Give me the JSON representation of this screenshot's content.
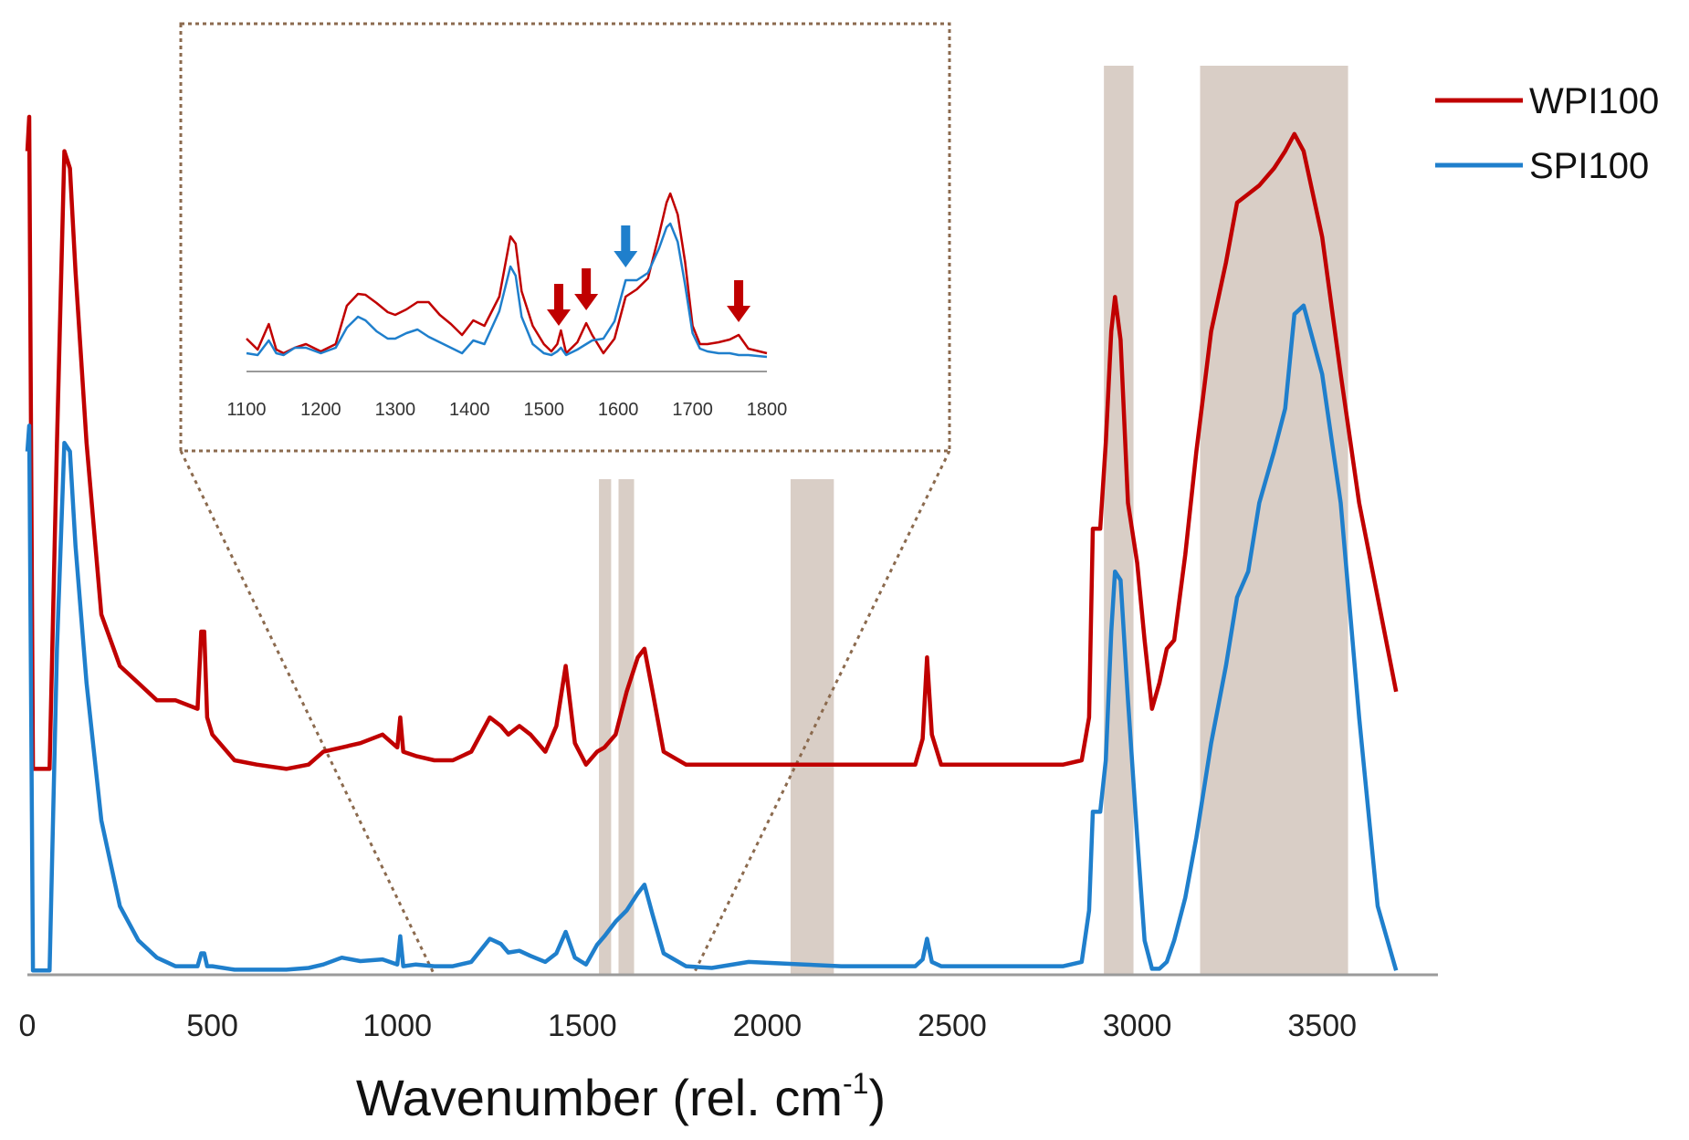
{
  "chart_data": {
    "type": "line",
    "xlabel": "Wavenumber (rel. cm",
    "xlabel_sup": "-1",
    "xlabel_close": ")",
    "xlim": [
      0,
      3800
    ],
    "xticks": [
      "0",
      "500",
      "1000",
      "1500",
      "2000",
      "2500",
      "3000",
      "3500"
    ],
    "ylabel": "",
    "legend_position": "top-right",
    "colors": {
      "WPI100": "#c00000",
      "SPI100": "#1f7fcc",
      "band": "#d9cec6",
      "zoom": "#8b6a4e"
    },
    "highlight_bands": [
      {
        "from": 1545,
        "to": 1578,
        "range": "inset"
      },
      {
        "from": 1598,
        "to": 1640,
        "range": "inset"
      },
      {
        "from": 2063,
        "to": 2180,
        "range": "inset"
      },
      {
        "from": 2910,
        "to": 2990,
        "range": "full"
      },
      {
        "from": 3170,
        "to": 3570,
        "range": "full"
      }
    ],
    "series": [
      {
        "name": "WPI100",
        "x": [
          0,
          5,
          15,
          60,
          80,
          100,
          115,
          130,
          160,
          200,
          250,
          300,
          350,
          400,
          460,
          470,
          478,
          486,
          500,
          560,
          620,
          700,
          760,
          800,
          850,
          900,
          960,
          1000,
          1008,
          1016,
          1050,
          1100,
          1150,
          1200,
          1250,
          1280,
          1300,
          1330,
          1360,
          1400,
          1430,
          1455,
          1480,
          1510,
          1540,
          1560,
          1590,
          1620,
          1650,
          1668,
          1690,
          1720,
          1780,
          1850,
          1950,
          2100,
          2200,
          2300,
          2400,
          2420,
          2432,
          2445,
          2470,
          2550,
          2650,
          2800,
          2850,
          2870,
          2880,
          2900,
          2915,
          2930,
          2940,
          2955,
          2975,
          3000,
          3020,
          3040,
          3060,
          3080,
          3100,
          3130,
          3160,
          3200,
          3240,
          3270,
          3300,
          3330,
          3370,
          3400,
          3425,
          3450,
          3500,
          3550,
          3600,
          3650,
          3700
        ],
        "y": [
          96,
          100,
          24,
          24,
          62,
          96,
          94,
          82,
          62,
          42,
          36,
          34,
          32,
          32,
          31,
          40,
          40,
          30,
          28,
          25,
          24.5,
          24,
          24.5,
          26,
          26.5,
          27,
          28,
          26.5,
          30,
          26,
          25.5,
          25,
          25,
          26,
          30,
          29,
          28,
          29,
          28,
          26,
          29,
          36,
          27,
          24.5,
          26,
          26.5,
          28,
          33,
          37,
          38,
          33,
          26,
          24.5,
          24.5,
          24.5,
          24.5,
          24.5,
          24.5,
          24.5,
          27.5,
          37,
          28,
          24.5,
          24.5,
          24.5,
          24.5,
          25,
          30,
          52,
          52,
          62,
          75,
          79,
          74,
          55,
          48,
          39,
          31,
          34,
          38,
          39,
          49,
          61,
          75,
          83,
          90,
          91,
          92,
          94,
          96,
          98,
          96,
          86,
          70,
          55,
          44,
          33
        ]
      },
      {
        "name": "SPI100",
        "x": [
          0,
          5,
          15,
          60,
          80,
          100,
          115,
          130,
          160,
          200,
          250,
          300,
          350,
          400,
          460,
          470,
          478,
          486,
          500,
          560,
          620,
          700,
          760,
          800,
          850,
          900,
          960,
          1000,
          1008,
          1016,
          1050,
          1100,
          1150,
          1200,
          1250,
          1280,
          1300,
          1330,
          1360,
          1400,
          1430,
          1455,
          1480,
          1510,
          1540,
          1560,
          1590,
          1620,
          1650,
          1668,
          1690,
          1720,
          1780,
          1850,
          1950,
          2100,
          2200,
          2300,
          2400,
          2420,
          2432,
          2445,
          2470,
          2550,
          2650,
          2800,
          2850,
          2870,
          2880,
          2900,
          2915,
          2930,
          2940,
          2955,
          2975,
          3000,
          3020,
          3040,
          3060,
          3080,
          3100,
          3130,
          3160,
          3200,
          3240,
          3270,
          3300,
          3330,
          3370,
          3400,
          3425,
          3450,
          3500,
          3550,
          3600,
          3650,
          3700
        ],
        "y": [
          61,
          64,
          0.5,
          0.5,
          38,
          62,
          61,
          50,
          34,
          18,
          8,
          4,
          2,
          1,
          1,
          2.5,
          2.5,
          1,
          1,
          0.6,
          0.6,
          0.6,
          0.8,
          1.2,
          2,
          1.6,
          1.8,
          1.2,
          4.5,
          1,
          1.2,
          1,
          1,
          1.5,
          4.2,
          3.6,
          2.6,
          2.8,
          2.2,
          1.5,
          2.5,
          5,
          2,
          1.2,
          3.5,
          4.5,
          6.2,
          7.5,
          9.5,
          10.5,
          7,
          2.5,
          1,
          0.8,
          1.5,
          1.2,
          1,
          1,
          1,
          1.8,
          4.2,
          1.5,
          1,
          1,
          1,
          1,
          1.5,
          7.5,
          19,
          19,
          25,
          40,
          47,
          46,
          32,
          16,
          4,
          0.7,
          0.7,
          1.5,
          4,
          9,
          16,
          27,
          36,
          44,
          47,
          55,
          61,
          66,
          77,
          78,
          70,
          55,
          30,
          8,
          0.5
        ]
      }
    ],
    "inset": {
      "xlim": [
        1100,
        1800
      ],
      "xticks": [
        "1100",
        "1200",
        "1300",
        "1400",
        "1500",
        "1600",
        "1700",
        "1800"
      ],
      "arrows": [
        {
          "series": "WPI100",
          "x": 1520
        },
        {
          "series": "WPI100",
          "x": 1557
        },
        {
          "series": "SPI100",
          "x": 1610
        },
        {
          "series": "WPI100",
          "x": 1762
        }
      ],
      "series": [
        {
          "name": "WPI100",
          "x": [
            1100,
            1115,
            1130,
            1140,
            1150,
            1165,
            1180,
            1200,
            1220,
            1235,
            1250,
            1260,
            1275,
            1290,
            1300,
            1315,
            1330,
            1345,
            1360,
            1375,
            1390,
            1405,
            1420,
            1440,
            1455,
            1462,
            1470,
            1485,
            1500,
            1510,
            1518,
            1523,
            1530,
            1545,
            1557,
            1565,
            1580,
            1595,
            1610,
            1625,
            1640,
            1655,
            1665,
            1670,
            1680,
            1690,
            1700,
            1710,
            1720,
            1735,
            1750,
            1762,
            1775,
            1800
          ],
          "y": [
            0.36,
            0.24,
            0.52,
            0.24,
            0.2,
            0.26,
            0.3,
            0.22,
            0.3,
            0.72,
            0.85,
            0.84,
            0.75,
            0.65,
            0.62,
            0.68,
            0.76,
            0.76,
            0.62,
            0.52,
            0.4,
            0.56,
            0.5,
            0.82,
            1.48,
            1.4,
            0.88,
            0.5,
            0.3,
            0.22,
            0.3,
            0.45,
            0.2,
            0.32,
            0.53,
            0.4,
            0.2,
            0.36,
            0.82,
            0.9,
            1.02,
            1.5,
            1.85,
            1.95,
            1.72,
            1.2,
            0.5,
            0.3,
            0.3,
            0.32,
            0.35,
            0.4,
            0.25,
            0.2
          ]
        },
        {
          "name": "SPI100",
          "x": [
            1100,
            1115,
            1130,
            1140,
            1150,
            1165,
            1180,
            1200,
            1220,
            1235,
            1250,
            1260,
            1275,
            1290,
            1300,
            1315,
            1330,
            1345,
            1360,
            1375,
            1390,
            1405,
            1420,
            1440,
            1455,
            1462,
            1470,
            1485,
            1500,
            1510,
            1518,
            1523,
            1530,
            1545,
            1557,
            1565,
            1580,
            1595,
            1610,
            1625,
            1640,
            1655,
            1665,
            1670,
            1680,
            1690,
            1700,
            1710,
            1720,
            1735,
            1750,
            1762,
            1775,
            1800
          ],
          "y": [
            0.2,
            0.18,
            0.34,
            0.2,
            0.18,
            0.26,
            0.26,
            0.2,
            0.26,
            0.48,
            0.6,
            0.56,
            0.44,
            0.36,
            0.36,
            0.42,
            0.46,
            0.38,
            0.32,
            0.26,
            0.2,
            0.34,
            0.3,
            0.66,
            1.15,
            1.05,
            0.6,
            0.3,
            0.2,
            0.18,
            0.22,
            0.26,
            0.18,
            0.24,
            0.3,
            0.34,
            0.36,
            0.55,
            1.0,
            1.0,
            1.08,
            1.35,
            1.58,
            1.62,
            1.42,
            0.95,
            0.42,
            0.25,
            0.22,
            0.2,
            0.2,
            0.18,
            0.18,
            0.16
          ]
        }
      ]
    }
  }
}
